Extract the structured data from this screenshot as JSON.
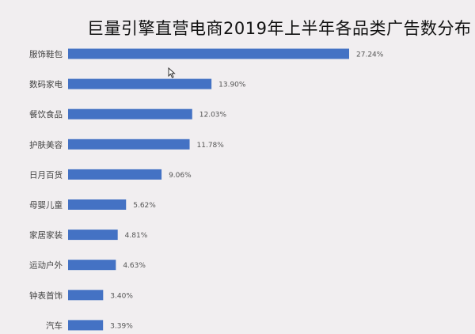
{
  "chart_data": {
    "type": "bar",
    "orientation": "horizontal",
    "title": "巨量引擎直营电商2019年上半年各品类广告数分布",
    "categories": [
      "服饰鞋包",
      "数码家电",
      "餐饮食品",
      "护肤美容",
      "日月百货",
      "母婴儿童",
      "家居家装",
      "运动户外",
      "钟表首饰",
      "汽车"
    ],
    "values": [
      27.24,
      13.9,
      12.03,
      11.78,
      9.06,
      5.62,
      4.81,
      4.63,
      3.4,
      3.39
    ],
    "value_labels": [
      "27.24%",
      "13.90%",
      "12.03%",
      "11.78%",
      "9.06%",
      "5.62%",
      "4.81%",
      "4.63%",
      "3.40%",
      "3.39%"
    ],
    "xlabel": "",
    "ylabel": "",
    "xlim": [
      0,
      27.24
    ],
    "grid": false,
    "legend": "none",
    "bar_color": "#4472c4"
  },
  "icons": {
    "cursor": "mouse-pointer-icon"
  }
}
